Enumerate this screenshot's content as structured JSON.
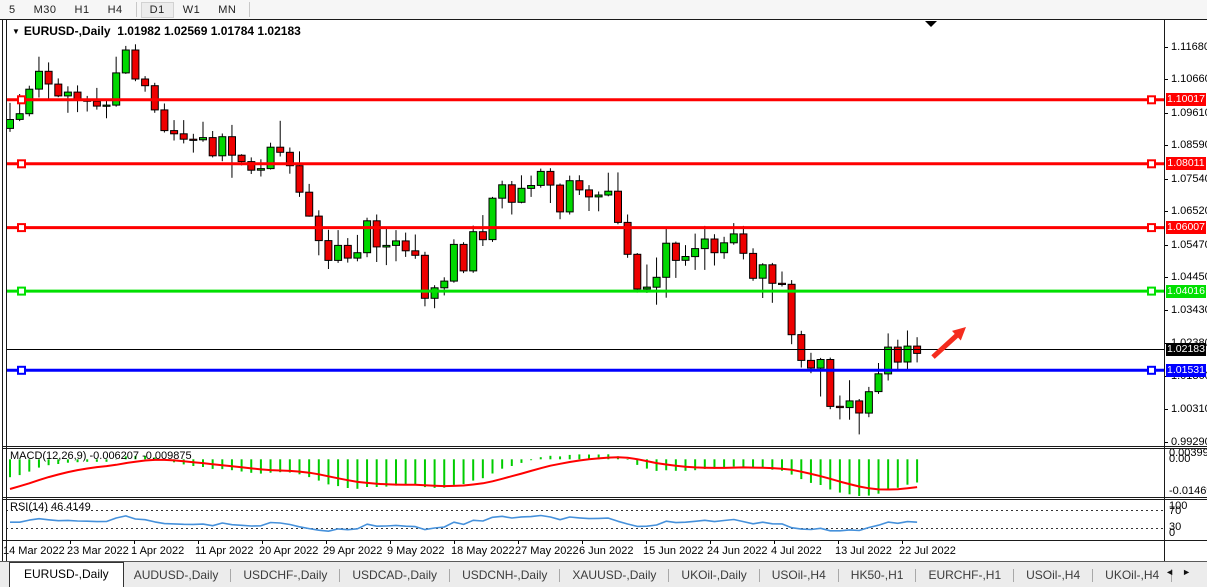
{
  "toolbar": {
    "items": [
      "5",
      "M30",
      "H1",
      "H4",
      "D1",
      "W1",
      "MN"
    ],
    "active_item": "D1"
  },
  "window": {
    "title_symbol": "EURUSD-,Daily",
    "ohlc_text": "1.01982 1.02569 1.01784 1.02183"
  },
  "chart_data": {
    "type": "candlestick",
    "title": "EURUSD-,Daily",
    "current_bar": {
      "open": 1.01982,
      "high": 1.02569,
      "low": 1.01784,
      "close": 1.02183
    },
    "y_axis_ticks": [
      "1.11680",
      "1.10660",
      "1.09610",
      "1.08590",
      "1.07540",
      "1.06520",
      "1.05470",
      "1.04450",
      "1.03430",
      "1.02380",
      "1.01360",
      "1.00310",
      "0.99290"
    ],
    "x_axis_ticks": [
      "14 Mar 2022",
      "23 Mar 2022",
      "1 Apr 2022",
      "11 Apr 2022",
      "20 Apr 2022",
      "29 Apr 2022",
      "9 May 2022",
      "18 May 2022",
      "27 May 2022",
      "6 Jun 2022",
      "15 Jun 2022",
      "24 Jun 2022",
      "4 Jul 2022",
      "13 Jul 2022",
      "22 Jul 2022"
    ],
    "y_range": [
      0.99156,
      1.12521
    ],
    "grid": false,
    "colors": {
      "bull": "#00d800",
      "bear": "#ee0000",
      "wick": "#000000"
    },
    "horizontal_lines": [
      {
        "price": 1.10017,
        "label": "1.10017",
        "color": "#ff0000",
        "thickness": 3,
        "handles": true
      },
      {
        "price": 1.08011,
        "label": "1.08011",
        "color": "#ff0000",
        "thickness": 3,
        "handles": true
      },
      {
        "price": 1.06007,
        "label": "1.06007",
        "color": "#ff0000",
        "thickness": 3,
        "handles": true
      },
      {
        "price": 1.04016,
        "label": "1.04016",
        "color": "#00e000",
        "thickness": 3,
        "handles": true
      },
      {
        "price": 1.02183,
        "label": "1.02183",
        "color": "#000000",
        "thickness": 1,
        "handles": false
      },
      {
        "price": 1.01531,
        "label": "1.01531",
        "color": "#0000ff",
        "thickness": 3,
        "handles": true
      }
    ],
    "candles": [
      {
        "d": "14 Mar",
        "o": 1.0912,
        "h": 1.0992,
        "l": 1.0901,
        "c": 1.094
      },
      {
        "d": "15 Mar",
        "o": 1.094,
        "h": 1.102,
        "l": 1.0935,
        "c": 1.0958
      },
      {
        "d": "16 Mar",
        "o": 1.0958,
        "h": 1.1046,
        "l": 1.095,
        "c": 1.1035
      },
      {
        "d": "17 Mar",
        "o": 1.1035,
        "h": 1.1137,
        "l": 1.1009,
        "c": 1.1091
      },
      {
        "d": "18 Mar",
        "o": 1.1091,
        "h": 1.1119,
        "l": 1.1003,
        "c": 1.1051
      },
      {
        "d": "21 Mar",
        "o": 1.1051,
        "h": 1.1069,
        "l": 1.101,
        "c": 1.1014
      },
      {
        "d": "22 Mar",
        "o": 1.1014,
        "h": 1.1044,
        "l": 1.0961,
        "c": 1.1026
      },
      {
        "d": "23 Mar",
        "o": 1.1026,
        "h": 1.1047,
        "l": 1.0963,
        "c": 1.1004
      },
      {
        "d": "24 Mar",
        "o": 1.1004,
        "h": 1.1014,
        "l": 1.0965,
        "c": 1.0997
      },
      {
        "d": "25 Mar",
        "o": 1.0997,
        "h": 1.1039,
        "l": 1.0971,
        "c": 1.0982
      },
      {
        "d": "28 Mar",
        "o": 1.0982,
        "h": 1.1,
        "l": 1.0944,
        "c": 1.0985
      },
      {
        "d": "29 Mar",
        "o": 1.0985,
        "h": 1.1137,
        "l": 1.098,
        "c": 1.1086
      },
      {
        "d": "30 Mar",
        "o": 1.1086,
        "h": 1.1171,
        "l": 1.1083,
        "c": 1.1158
      },
      {
        "d": "31 Mar",
        "o": 1.1158,
        "h": 1.1176,
        "l": 1.106,
        "c": 1.1067
      },
      {
        "d": "1 Apr",
        "o": 1.1067,
        "h": 1.1076,
        "l": 1.1027,
        "c": 1.1046
      },
      {
        "d": "4 Apr",
        "o": 1.1046,
        "h": 1.1055,
        "l": 1.0961,
        "c": 1.097
      },
      {
        "d": "5 Apr",
        "o": 1.097,
        "h": 1.099,
        "l": 1.0899,
        "c": 1.0905
      },
      {
        "d": "6 Apr",
        "o": 1.0905,
        "h": 1.0938,
        "l": 1.0874,
        "c": 1.0895
      },
      {
        "d": "7 Apr",
        "o": 1.0895,
        "h": 1.0938,
        "l": 1.0865,
        "c": 1.0878
      },
      {
        "d": "8 Apr",
        "o": 1.0878,
        "h": 1.0895,
        "l": 1.0836,
        "c": 1.0876
      },
      {
        "d": "11 Apr",
        "o": 1.0876,
        "h": 1.0933,
        "l": 1.087,
        "c": 1.0883
      },
      {
        "d": "12 Apr",
        "o": 1.0883,
        "h": 1.0904,
        "l": 1.0821,
        "c": 1.0826
      },
      {
        "d": "13 Apr",
        "o": 1.0826,
        "h": 1.0896,
        "l": 1.0809,
        "c": 1.0886
      },
      {
        "d": "14 Apr",
        "o": 1.0886,
        "h": 1.0923,
        "l": 1.0757,
        "c": 1.0828
      },
      {
        "d": "15 Apr",
        "o": 1.0828,
        "h": 1.0831,
        "l": 1.0796,
        "c": 1.0808
      },
      {
        "d": "18 Apr",
        "o": 1.0808,
        "h": 1.0821,
        "l": 1.0769,
        "c": 1.0781
      },
      {
        "d": "19 Apr",
        "o": 1.0781,
        "h": 1.0815,
        "l": 1.0761,
        "c": 1.0786
      },
      {
        "d": "20 Apr",
        "o": 1.0786,
        "h": 1.0867,
        "l": 1.0783,
        "c": 1.0853
      },
      {
        "d": "21 Apr",
        "o": 1.0853,
        "h": 1.0936,
        "l": 1.0824,
        "c": 1.0837
      },
      {
        "d": "22 Apr",
        "o": 1.0837,
        "h": 1.0852,
        "l": 1.077,
        "c": 1.0795
      },
      {
        "d": "25 Apr",
        "o": 1.0795,
        "h": 1.084,
        "l": 1.0697,
        "c": 1.0712
      },
      {
        "d": "26 Apr",
        "o": 1.0712,
        "h": 1.0738,
        "l": 1.0635,
        "c": 1.0637
      },
      {
        "d": "27 Apr",
        "o": 1.0637,
        "h": 1.0655,
        "l": 1.0514,
        "c": 1.056
      },
      {
        "d": "28 Apr",
        "o": 1.056,
        "h": 1.0594,
        "l": 1.0471,
        "c": 1.0498
      },
      {
        "d": "29 Apr",
        "o": 1.0498,
        "h": 1.0593,
        "l": 1.049,
        "c": 1.0545
      },
      {
        "d": "2 May",
        "o": 1.0545,
        "h": 1.0568,
        "l": 1.0491,
        "c": 1.0505
      },
      {
        "d": "3 May",
        "o": 1.0505,
        "h": 1.0578,
        "l": 1.0495,
        "c": 1.0522
      },
      {
        "d": "4 May",
        "o": 1.0522,
        "h": 1.0632,
        "l": 1.0508,
        "c": 1.0622
      },
      {
        "d": "5 May",
        "o": 1.0622,
        "h": 1.0642,
        "l": 1.0493,
        "c": 1.054
      },
      {
        "d": "6 May",
        "o": 1.054,
        "h": 1.0599,
        "l": 1.0483,
        "c": 1.0545
      },
      {
        "d": "9 May",
        "o": 1.0545,
        "h": 1.0593,
        "l": 1.0495,
        "c": 1.0559
      },
      {
        "d": "10 May",
        "o": 1.0559,
        "h": 1.0585,
        "l": 1.0509,
        "c": 1.0528
      },
      {
        "d": "11 May",
        "o": 1.0528,
        "h": 1.0579,
        "l": 1.0503,
        "c": 1.0514
      },
      {
        "d": "12 May",
        "o": 1.0514,
        "h": 1.0525,
        "l": 1.0354,
        "c": 1.0379
      },
      {
        "d": "13 May",
        "o": 1.0379,
        "h": 1.042,
        "l": 1.0348,
        "c": 1.0412
      },
      {
        "d": "16 May",
        "o": 1.0412,
        "h": 1.0445,
        "l": 1.0388,
        "c": 1.0433
      },
      {
        "d": "17 May",
        "o": 1.0433,
        "h": 1.0564,
        "l": 1.0428,
        "c": 1.0548
      },
      {
        "d": "18 May",
        "o": 1.0548,
        "h": 1.0555,
        "l": 1.0458,
        "c": 1.0465
      },
      {
        "d": "19 May",
        "o": 1.0465,
        "h": 1.0607,
        "l": 1.0459,
        "c": 1.0588
      },
      {
        "d": "20 May",
        "o": 1.0588,
        "h": 1.064,
        "l": 1.0543,
        "c": 1.0563
      },
      {
        "d": "23 May",
        "o": 1.0563,
        "h": 1.0697,
        "l": 1.0556,
        "c": 1.0693
      },
      {
        "d": "24 May",
        "o": 1.0693,
        "h": 1.0748,
        "l": 1.0661,
        "c": 1.0735
      },
      {
        "d": "25 May",
        "o": 1.0735,
        "h": 1.0747,
        "l": 1.0642,
        "c": 1.068
      },
      {
        "d": "26 May",
        "o": 1.068,
        "h": 1.0765,
        "l": 1.0677,
        "c": 1.0724
      },
      {
        "d": "27 May",
        "o": 1.0724,
        "h": 1.0764,
        "l": 1.0697,
        "c": 1.0733
      },
      {
        "d": "30 May",
        "o": 1.0733,
        "h": 1.0786,
        "l": 1.0726,
        "c": 1.0777
      },
      {
        "d": "31 May",
        "o": 1.0777,
        "h": 1.0787,
        "l": 1.0678,
        "c": 1.0734
      },
      {
        "d": "1 Jun",
        "o": 1.0734,
        "h": 1.0739,
        "l": 1.0627,
        "c": 1.065
      },
      {
        "d": "2 Jun",
        "o": 1.065,
        "h": 1.0764,
        "l": 1.0642,
        "c": 1.0748
      },
      {
        "d": "3 Jun",
        "o": 1.0748,
        "h": 1.0765,
        "l": 1.0703,
        "c": 1.0719
      },
      {
        "d": "6 Jun",
        "o": 1.0719,
        "h": 1.0734,
        "l": 1.0653,
        "c": 1.0697
      },
      {
        "d": "7 Jun",
        "o": 1.0697,
        "h": 1.0714,
        "l": 1.0652,
        "c": 1.0703
      },
      {
        "d": "8 Jun",
        "o": 1.0703,
        "h": 1.0773,
        "l": 1.0699,
        "c": 1.0715
      },
      {
        "d": "9 Jun",
        "o": 1.0715,
        "h": 1.0774,
        "l": 1.0611,
        "c": 1.0617
      },
      {
        "d": "10 Jun",
        "o": 1.0617,
        "h": 1.0642,
        "l": 1.0506,
        "c": 1.0517
      },
      {
        "d": "13 Jun",
        "o": 1.0517,
        "h": 1.0521,
        "l": 1.0397,
        "c": 1.0408
      },
      {
        "d": "14 Jun",
        "o": 1.0408,
        "h": 1.0485,
        "l": 1.0396,
        "c": 1.0414
      },
      {
        "d": "15 Jun",
        "o": 1.0414,
        "h": 1.0507,
        "l": 1.0359,
        "c": 1.0445
      },
      {
        "d": "16 Jun",
        "o": 1.0445,
        "h": 1.0601,
        "l": 1.0381,
        "c": 1.0552
      },
      {
        "d": "17 Jun",
        "o": 1.0552,
        "h": 1.0557,
        "l": 1.0443,
        "c": 1.0498
      },
      {
        "d": "20 Jun",
        "o": 1.0498,
        "h": 1.0546,
        "l": 1.0481,
        "c": 1.051
      },
      {
        "d": "21 Jun",
        "o": 1.051,
        "h": 1.0582,
        "l": 1.0468,
        "c": 1.0535
      },
      {
        "d": "22 Jun",
        "o": 1.0535,
        "h": 1.0606,
        "l": 1.0468,
        "c": 1.0565
      },
      {
        "d": "23 Jun",
        "o": 1.0565,
        "h": 1.058,
        "l": 1.0482,
        "c": 1.0522
      },
      {
        "d": "24 Jun",
        "o": 1.0522,
        "h": 1.0572,
        "l": 1.0503,
        "c": 1.0553
      },
      {
        "d": "27 Jun",
        "o": 1.0553,
        "h": 1.0615,
        "l": 1.0547,
        "c": 1.0581
      },
      {
        "d": "28 Jun",
        "o": 1.0581,
        "h": 1.0606,
        "l": 1.0501,
        "c": 1.052
      },
      {
        "d": "29 Jun",
        "o": 1.052,
        "h": 1.0536,
        "l": 1.0434,
        "c": 1.0442
      },
      {
        "d": "30 Jun",
        "o": 1.0442,
        "h": 1.0489,
        "l": 1.038,
        "c": 1.0484
      },
      {
        "d": "1 Jul",
        "o": 1.0484,
        "h": 1.049,
        "l": 1.0365,
        "c": 1.0426
      },
      {
        "d": "4 Jul",
        "o": 1.0426,
        "h": 1.0463,
        "l": 1.0416,
        "c": 1.0423
      },
      {
        "d": "5 Jul",
        "o": 1.0423,
        "h": 1.0436,
        "l": 1.0235,
        "c": 1.0265
      },
      {
        "d": "6 Jul",
        "o": 1.0265,
        "h": 1.0277,
        "l": 1.0162,
        "c": 1.0184
      },
      {
        "d": "7 Jul",
        "o": 1.0184,
        "h": 1.0208,
        "l": 1.0144,
        "c": 1.016
      },
      {
        "d": "8 Jul",
        "o": 1.016,
        "h": 1.0192,
        "l": 1.0071,
        "c": 1.0187
      },
      {
        "d": "11 Jul",
        "o": 1.0187,
        "h": 1.0193,
        "l": 1.0031,
        "c": 1.004
      },
      {
        "d": "12 Jul",
        "o": 1.004,
        "h": 1.0074,
        "l": 0.9999,
        "c": 1.0036
      },
      {
        "d": "13 Jul",
        "o": 1.0036,
        "h": 1.0122,
        "l": 0.9998,
        "c": 1.0057
      },
      {
        "d": "14 Jul",
        "o": 1.0057,
        "h": 1.0063,
        "l": 0.9952,
        "c": 1.0019
      },
      {
        "d": "15 Jul",
        "o": 1.0019,
        "h": 1.0101,
        "l": 1.0006,
        "c": 1.0086
      },
      {
        "d": "18 Jul",
        "o": 1.0086,
        "h": 1.0176,
        "l": 1.0079,
        "c": 1.0142
      },
      {
        "d": "19 Jul",
        "o": 1.0142,
        "h": 1.0269,
        "l": 1.0121,
        "c": 1.0226
      },
      {
        "d": "20 Jul",
        "o": 1.0226,
        "h": 1.0249,
        "l": 1.0155,
        "c": 1.0179
      },
      {
        "d": "21 Jul",
        "o": 1.0179,
        "h": 1.0278,
        "l": 1.0151,
        "c": 1.0229
      },
      {
        "d": "22 Jul",
        "o": 1.0229,
        "h": 1.0257,
        "l": 1.0178,
        "c": 1.0206
      }
    ],
    "indicators": {
      "macd": {
        "label": "MACD(12,26,9)",
        "values_text": "-0.006207 -0.009875",
        "axis_labels": [
          "0.00399",
          "0.00",
          "-0.01469"
        ],
        "axis_values": [
          0.00399,
          0.0,
          -0.01469
        ],
        "range": [
          -0.01469,
          0.00399
        ],
        "histogram_color": "#00cc00",
        "signal_color": "#ff0000"
      },
      "rsi": {
        "label": "RSI(14)",
        "value_text": "46.4149",
        "axis_labels": [
          "100",
          "70",
          "30",
          "0"
        ],
        "axis_values": [
          100,
          70,
          30,
          0
        ],
        "levels": [
          70,
          30
        ],
        "line_color": "#4691db"
      }
    },
    "annotation_arrow": {
      "color": "#f52c1e",
      "direction": "up-right"
    }
  },
  "tabs": {
    "active": "EURUSD-,Daily",
    "items": [
      "EURUSD-,Daily",
      "AUDUSD-,Daily",
      "USDCHF-,Daily",
      "USDCAD-,Daily",
      "USDCNH-,Daily",
      "XAUUSD-,Daily",
      "UKOil-,Daily",
      "USOil-,H4",
      "HK50-,H1",
      "EURCHF-,H1",
      "USOil-,H4",
      "UKOil-,H4"
    ],
    "scroll_left": "◄",
    "scroll_right": "►"
  }
}
